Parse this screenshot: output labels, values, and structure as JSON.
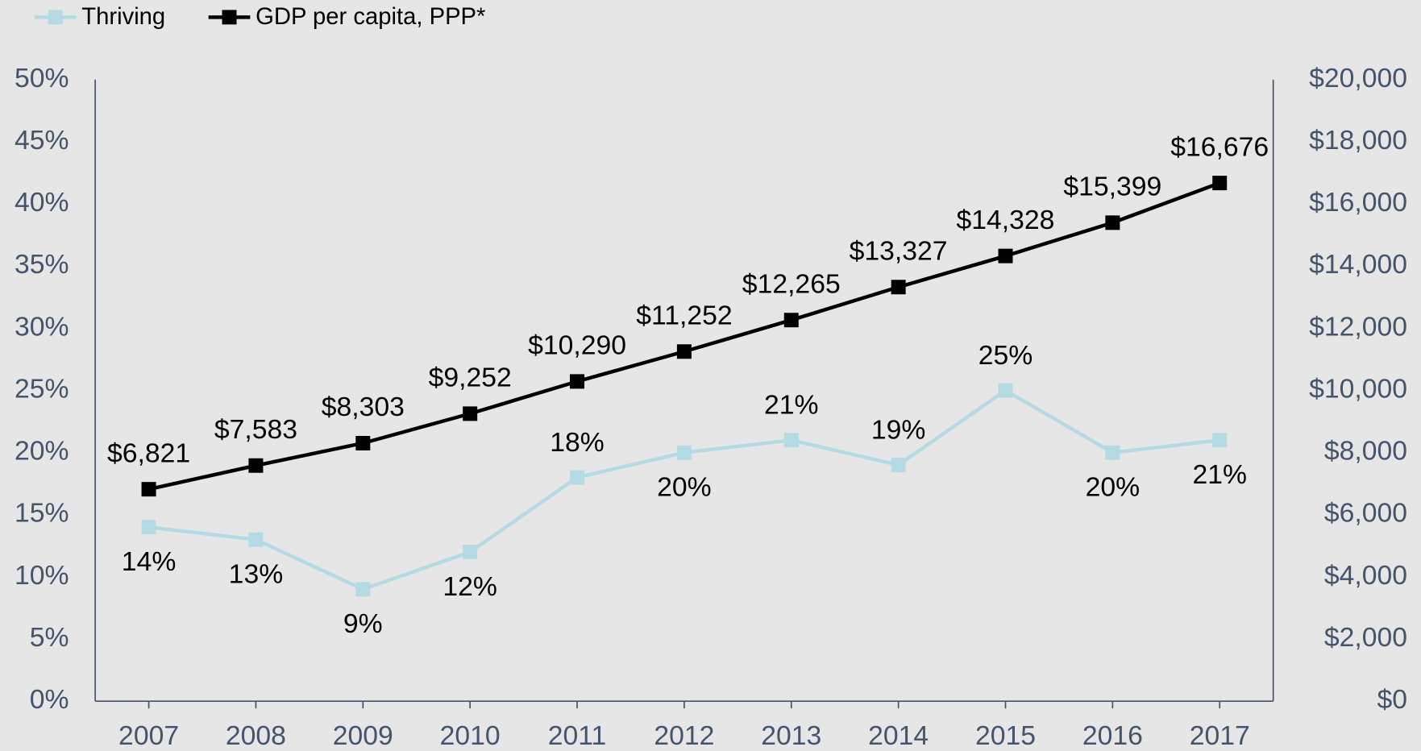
{
  "chart_data": {
    "type": "line",
    "categories": [
      "2007",
      "2008",
      "2009",
      "2010",
      "2011",
      "2012",
      "2013",
      "2014",
      "2015",
      "2016",
      "2017"
    ],
    "series": [
      {
        "name": "Thriving",
        "color": "#b4dbe4",
        "values": [
          14,
          13,
          9,
          12,
          18,
          20,
          21,
          19,
          25,
          20,
          21
        ],
        "value_labels": [
          "14%",
          "13%",
          "9%",
          "12%",
          "18%",
          "20%",
          "21%",
          "19%",
          "25%",
          "20%",
          "21%"
        ]
      },
      {
        "name": "GDP per capita, PPP*",
        "color": "#000000",
        "axis": "y2",
        "values": [
          6821,
          7583,
          8303,
          9252,
          10290,
          11252,
          12265,
          13327,
          14328,
          15399,
          16676
        ],
        "value_labels": [
          "$6,821",
          "$7,583",
          "$8,303",
          "$9,252",
          "$10,290",
          "$11,252",
          "$12,265",
          "$13,327",
          "$14,328",
          "$15,399",
          "$16,676"
        ]
      }
    ],
    "ylim": [
      0,
      50
    ],
    "yticks": [
      {
        "value": 0,
        "label": "0%"
      },
      {
        "value": 5,
        "label": "5%"
      },
      {
        "value": 10,
        "label": "10%"
      },
      {
        "value": 15,
        "label": "15%"
      },
      {
        "value": 20,
        "label": "20%"
      },
      {
        "value": 25,
        "label": "25%"
      },
      {
        "value": 30,
        "label": "30%"
      },
      {
        "value": 35,
        "label": "35%"
      },
      {
        "value": 40,
        "label": "40%"
      },
      {
        "value": 45,
        "label": "45%"
      },
      {
        "value": 50,
        "label": "50%"
      }
    ],
    "y2lim": [
      0,
      20000
    ],
    "y2ticks": [
      {
        "value": 0,
        "label": "$0"
      },
      {
        "value": 2000,
        "label": "$2,000"
      },
      {
        "value": 4000,
        "label": "$4,000"
      },
      {
        "value": 6000,
        "label": "$6,000"
      },
      {
        "value": 8000,
        "label": "$8,000"
      },
      {
        "value": 10000,
        "label": "$10,000"
      },
      {
        "value": 12000,
        "label": "$12,000"
      },
      {
        "value": 14000,
        "label": "$14,000"
      },
      {
        "value": 16000,
        "label": "$16,000"
      },
      {
        "value": 18000,
        "label": "$18,000"
      },
      {
        "value": 20000,
        "label": "$20,000"
      }
    ],
    "grid": false,
    "legend": "top-left"
  }
}
